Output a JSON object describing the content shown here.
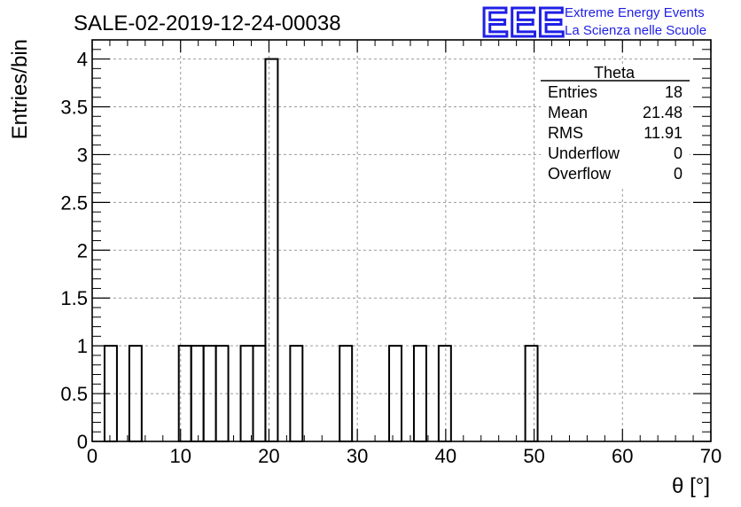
{
  "chart_data": {
    "type": "bar",
    "title": "SALE-02-2019-12-24-00038",
    "xlabel": "θ [°]",
    "ylabel": "Entries/bin",
    "xlim": [
      0,
      70
    ],
    "ylim": [
      0,
      4.2
    ],
    "grid": true,
    "bin_width": 1.4,
    "bins": [
      {
        "lo": 1.4,
        "hi": 2.8,
        "count": 1
      },
      {
        "lo": 4.2,
        "hi": 5.6,
        "count": 1
      },
      {
        "lo": 9.8,
        "hi": 11.2,
        "count": 1
      },
      {
        "lo": 11.2,
        "hi": 12.6,
        "count": 1
      },
      {
        "lo": 12.6,
        "hi": 14.0,
        "count": 1
      },
      {
        "lo": 14.0,
        "hi": 15.4,
        "count": 1
      },
      {
        "lo": 16.8,
        "hi": 18.2,
        "count": 1
      },
      {
        "lo": 18.2,
        "hi": 19.6,
        "count": 1
      },
      {
        "lo": 19.6,
        "hi": 21.0,
        "count": 4
      },
      {
        "lo": 22.4,
        "hi": 23.8,
        "count": 1
      },
      {
        "lo": 28.0,
        "hi": 29.4,
        "count": 1
      },
      {
        "lo": 33.6,
        "hi": 35.0,
        "count": 1
      },
      {
        "lo": 36.4,
        "hi": 37.8,
        "count": 1
      },
      {
        "lo": 39.2,
        "hi": 40.6,
        "count": 1
      },
      {
        "lo": 49.0,
        "hi": 50.4,
        "count": 1
      }
    ],
    "x_ticks": [
      "0",
      "10",
      "20",
      "30",
      "40",
      "50",
      "60",
      "70"
    ],
    "y_ticks": [
      "0",
      "0.5",
      "1",
      "1.5",
      "2",
      "2.5",
      "3",
      "3.5",
      "4"
    ],
    "stats_box": {
      "title": "Theta",
      "rows": [
        {
          "label": "Entries",
          "value": "18"
        },
        {
          "label": "Mean",
          "value": "21.48"
        },
        {
          "label": "RMS",
          "value": "11.91"
        },
        {
          "label": "Underflow",
          "value": "0"
        },
        {
          "label": "Overflow",
          "value": "0"
        }
      ]
    },
    "colors": {
      "line": "#000000",
      "grid": "#9a9a9a",
      "logo": "#1f1fe6"
    }
  },
  "logo": {
    "text": "EEE",
    "line1": "Extreme Energy Events",
    "line2": "La Scienza nelle Scuole"
  }
}
